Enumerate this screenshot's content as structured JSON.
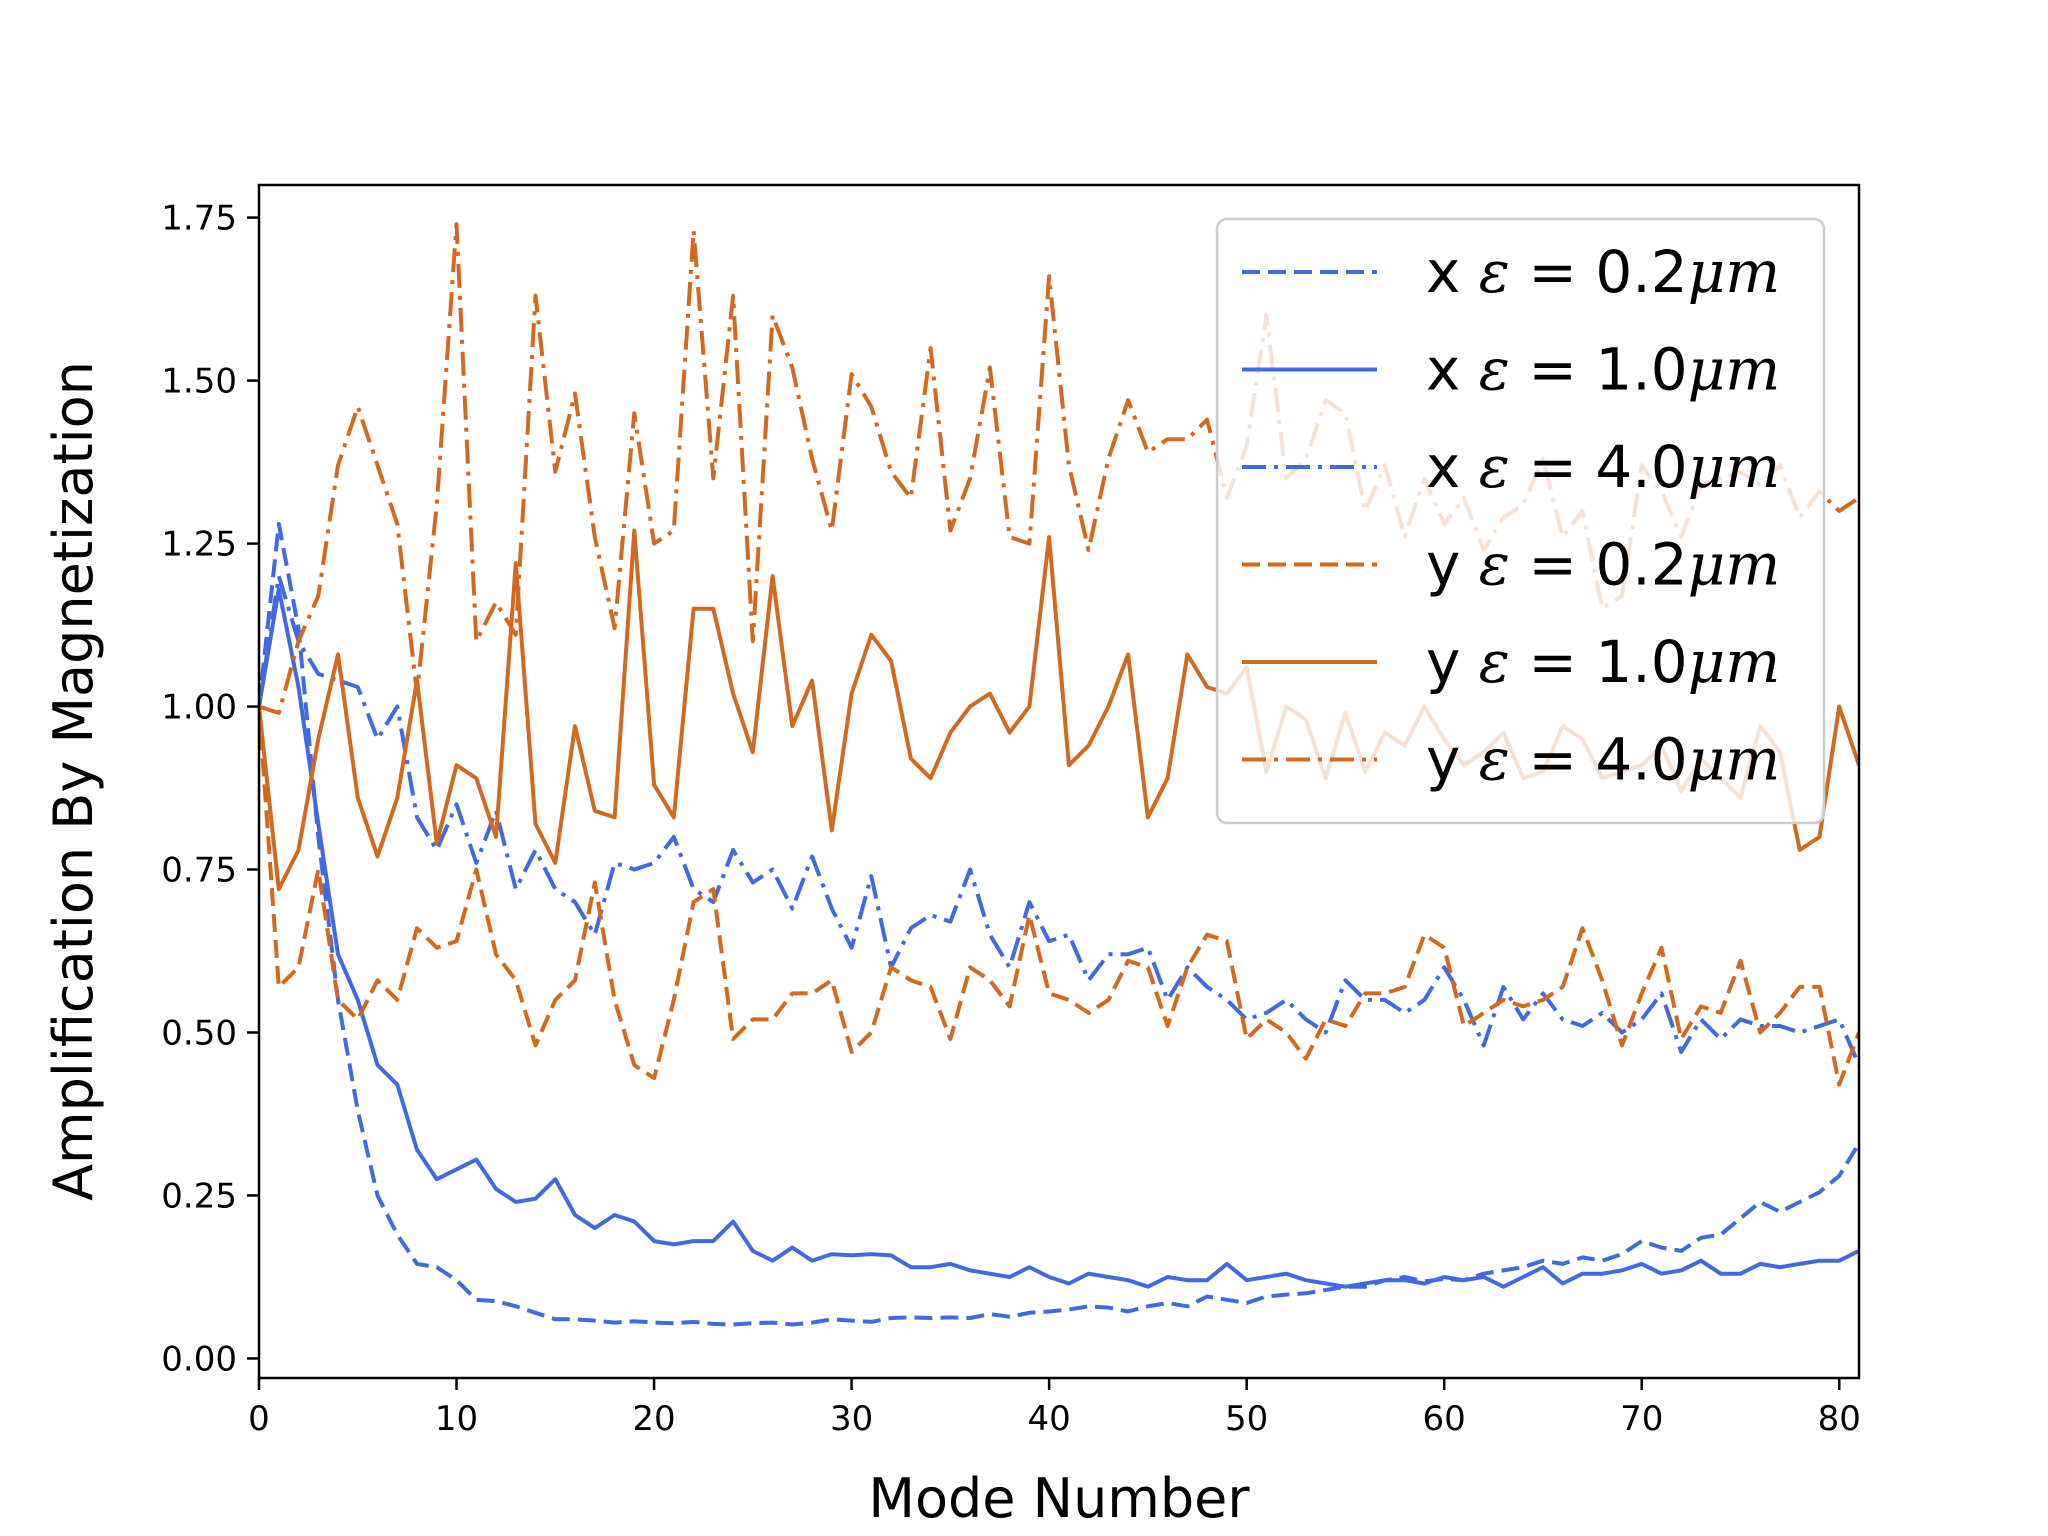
{
  "chart_data": {
    "type": "line",
    "title": "",
    "xlabel": "Mode Number",
    "ylabel": "Amplification By Magnetization",
    "xlim": [
      0,
      81
    ],
    "ylim": [
      -0.03,
      1.8
    ],
    "xticks": [
      0,
      10,
      20,
      30,
      40,
      50,
      60,
      70,
      80
    ],
    "xtick_labels": [
      "0",
      "10",
      "20",
      "30",
      "40",
      "50",
      "60",
      "70",
      "80"
    ],
    "yticks": [
      0.0,
      0.25,
      0.5,
      0.75,
      1.0,
      1.25,
      1.5,
      1.75
    ],
    "ytick_labels": [
      "0.00",
      "0.25",
      "0.50",
      "0.75",
      "1.00",
      "1.25",
      "1.50",
      "1.75"
    ],
    "grid": false,
    "legend_position": "top-right",
    "colors": {
      "x": "#4169e1",
      "y": "#d2691e"
    },
    "series": [
      {
        "name": "x ε = 0.2μm",
        "axis_label": "x",
        "epsilon": "0.2",
        "unit": "μm",
        "color": "#4169e1",
        "style": "dashed",
        "values": [
          1.0,
          1.28,
          1.12,
          0.8,
          0.55,
          0.38,
          0.25,
          0.19,
          0.145,
          0.14,
          0.12,
          0.09,
          0.088,
          0.08,
          0.07,
          0.06,
          0.06,
          0.058,
          0.055,
          0.057,
          0.055,
          0.054,
          0.056,
          0.053,
          0.052,
          0.054,
          0.055,
          0.052,
          0.055,
          0.06,
          0.058,
          0.056,
          0.062,
          0.063,
          0.062,
          0.063,
          0.062,
          0.068,
          0.064,
          0.07,
          0.072,
          0.075,
          0.08,
          0.078,
          0.072,
          0.08,
          0.085,
          0.08,
          0.095,
          0.09,
          0.085,
          0.095,
          0.098,
          0.1,
          0.105,
          0.11,
          0.11,
          0.12,
          0.125,
          0.118,
          0.122,
          0.12,
          0.13,
          0.135,
          0.14,
          0.15,
          0.145,
          0.155,
          0.15,
          0.16,
          0.18,
          0.17,
          0.165,
          0.185,
          0.19,
          0.215,
          0.24,
          0.225,
          0.24,
          0.255,
          0.28,
          0.33
        ]
      },
      {
        "name": "x ε = 1.0μm",
        "axis_label": "x",
        "epsilon": "1.0",
        "unit": "μm",
        "color": "#4169e1",
        "style": "solid",
        "values": [
          1.0,
          1.18,
          1.03,
          0.82,
          0.62,
          0.55,
          0.45,
          0.42,
          0.32,
          0.275,
          0.29,
          0.305,
          0.26,
          0.24,
          0.245,
          0.275,
          0.22,
          0.2,
          0.22,
          0.21,
          0.18,
          0.175,
          0.18,
          0.18,
          0.21,
          0.165,
          0.15,
          0.17,
          0.15,
          0.16,
          0.158,
          0.16,
          0.158,
          0.14,
          0.14,
          0.145,
          0.135,
          0.13,
          0.125,
          0.14,
          0.125,
          0.115,
          0.13,
          0.125,
          0.12,
          0.11,
          0.125,
          0.12,
          0.12,
          0.145,
          0.12,
          0.125,
          0.13,
          0.12,
          0.115,
          0.11,
          0.115,
          0.12,
          0.12,
          0.115,
          0.125,
          0.12,
          0.125,
          0.11,
          0.125,
          0.14,
          0.115,
          0.13,
          0.13,
          0.135,
          0.145,
          0.13,
          0.135,
          0.15,
          0.13,
          0.13,
          0.145,
          0.14,
          0.145,
          0.15,
          0.15,
          0.165
        ]
      },
      {
        "name": "x ε = 4.0μm",
        "axis_label": "x",
        "epsilon": "4.0",
        "unit": "μm",
        "color": "#4169e1",
        "style": "dashdot",
        "values": [
          1.0,
          1.2,
          1.1,
          1.05,
          1.04,
          1.03,
          0.95,
          1.0,
          0.83,
          0.78,
          0.85,
          0.76,
          0.84,
          0.72,
          0.78,
          0.72,
          0.7,
          0.65,
          0.76,
          0.75,
          0.76,
          0.8,
          0.72,
          0.7,
          0.78,
          0.73,
          0.75,
          0.69,
          0.77,
          0.69,
          0.63,
          0.74,
          0.6,
          0.66,
          0.68,
          0.67,
          0.75,
          0.65,
          0.6,
          0.7,
          0.64,
          0.65,
          0.58,
          0.62,
          0.62,
          0.63,
          0.55,
          0.6,
          0.57,
          0.55,
          0.52,
          0.53,
          0.55,
          0.52,
          0.5,
          0.58,
          0.55,
          0.55,
          0.53,
          0.55,
          0.6,
          0.55,
          0.48,
          0.57,
          0.52,
          0.56,
          0.52,
          0.51,
          0.53,
          0.5,
          0.52,
          0.56,
          0.47,
          0.52,
          0.49,
          0.52,
          0.51,
          0.51,
          0.5,
          0.51,
          0.52,
          0.45
        ]
      },
      {
        "name": "y ε = 0.2μm",
        "axis_label": "y",
        "epsilon": "0.2",
        "unit": "μm",
        "color": "#d2691e",
        "style": "dashed",
        "values": [
          1.0,
          0.57,
          0.6,
          0.75,
          0.55,
          0.52,
          0.58,
          0.55,
          0.66,
          0.63,
          0.64,
          0.75,
          0.62,
          0.58,
          0.48,
          0.55,
          0.58,
          0.73,
          0.55,
          0.45,
          0.43,
          0.55,
          0.7,
          0.72,
          0.49,
          0.52,
          0.52,
          0.56,
          0.56,
          0.58,
          0.47,
          0.5,
          0.6,
          0.58,
          0.57,
          0.49,
          0.6,
          0.58,
          0.54,
          0.68,
          0.56,
          0.55,
          0.53,
          0.55,
          0.61,
          0.6,
          0.51,
          0.6,
          0.65,
          0.64,
          0.49,
          0.52,
          0.5,
          0.46,
          0.52,
          0.51,
          0.56,
          0.56,
          0.57,
          0.65,
          0.63,
          0.51,
          0.53,
          0.55,
          0.54,
          0.55,
          0.57,
          0.66,
          0.58,
          0.48,
          0.56,
          0.63,
          0.49,
          0.54,
          0.53,
          0.61,
          0.5,
          0.53,
          0.57,
          0.57,
          0.42,
          0.5
        ]
      },
      {
        "name": "y ε = 1.0μm",
        "axis_label": "y",
        "epsilon": "1.0",
        "unit": "μm",
        "color": "#d2691e",
        "style": "solid",
        "values": [
          1.0,
          0.72,
          0.78,
          0.95,
          1.08,
          0.86,
          0.77,
          0.86,
          1.04,
          0.79,
          0.91,
          0.89,
          0.8,
          1.22,
          0.82,
          0.76,
          0.97,
          0.84,
          0.83,
          1.27,
          0.88,
          0.83,
          1.15,
          1.15,
          1.02,
          0.93,
          1.2,
          0.97,
          1.04,
          0.81,
          1.02,
          1.11,
          1.07,
          0.92,
          0.89,
          0.96,
          1.0,
          1.02,
          0.96,
          1.0,
          1.26,
          0.91,
          0.94,
          1.0,
          1.08,
          0.83,
          0.89,
          1.08,
          1.03,
          1.02,
          1.06,
          0.9,
          1.0,
          0.98,
          0.89,
          0.99,
          0.9,
          0.96,
          0.94,
          1.0,
          0.95,
          0.91,
          0.93,
          0.96,
          0.89,
          0.9,
          0.97,
          0.95,
          0.89,
          0.9,
          0.91,
          0.94,
          0.87,
          0.92,
          0.89,
          0.86,
          0.97,
          0.93,
          0.78,
          0.8,
          1.0,
          0.91
        ]
      },
      {
        "name": "y ε = 4.0μm",
        "axis_label": "y",
        "epsilon": "4.0",
        "unit": "μm",
        "color": "#d2691e",
        "style": "dashdot",
        "values": [
          1.0,
          0.99,
          1.1,
          1.17,
          1.37,
          1.46,
          1.37,
          1.28,
          1.02,
          1.31,
          1.74,
          1.1,
          1.16,
          1.11,
          1.63,
          1.36,
          1.48,
          1.26,
          1.12,
          1.45,
          1.25,
          1.27,
          1.73,
          1.35,
          1.63,
          1.1,
          1.6,
          1.52,
          1.38,
          1.27,
          1.51,
          1.46,
          1.36,
          1.32,
          1.55,
          1.27,
          1.35,
          1.52,
          1.26,
          1.25,
          1.66,
          1.37,
          1.24,
          1.38,
          1.47,
          1.39,
          1.41,
          1.41,
          1.44,
          1.32,
          1.4,
          1.6,
          1.35,
          1.38,
          1.47,
          1.45,
          1.3,
          1.37,
          1.26,
          1.35,
          1.28,
          1.32,
          1.24,
          1.29,
          1.31,
          1.38,
          1.26,
          1.3,
          1.15,
          1.17,
          1.37,
          1.33,
          1.26,
          1.34,
          1.35,
          1.36,
          1.34,
          1.37,
          1.29,
          1.33,
          1.3,
          1.32
        ]
      }
    ]
  }
}
